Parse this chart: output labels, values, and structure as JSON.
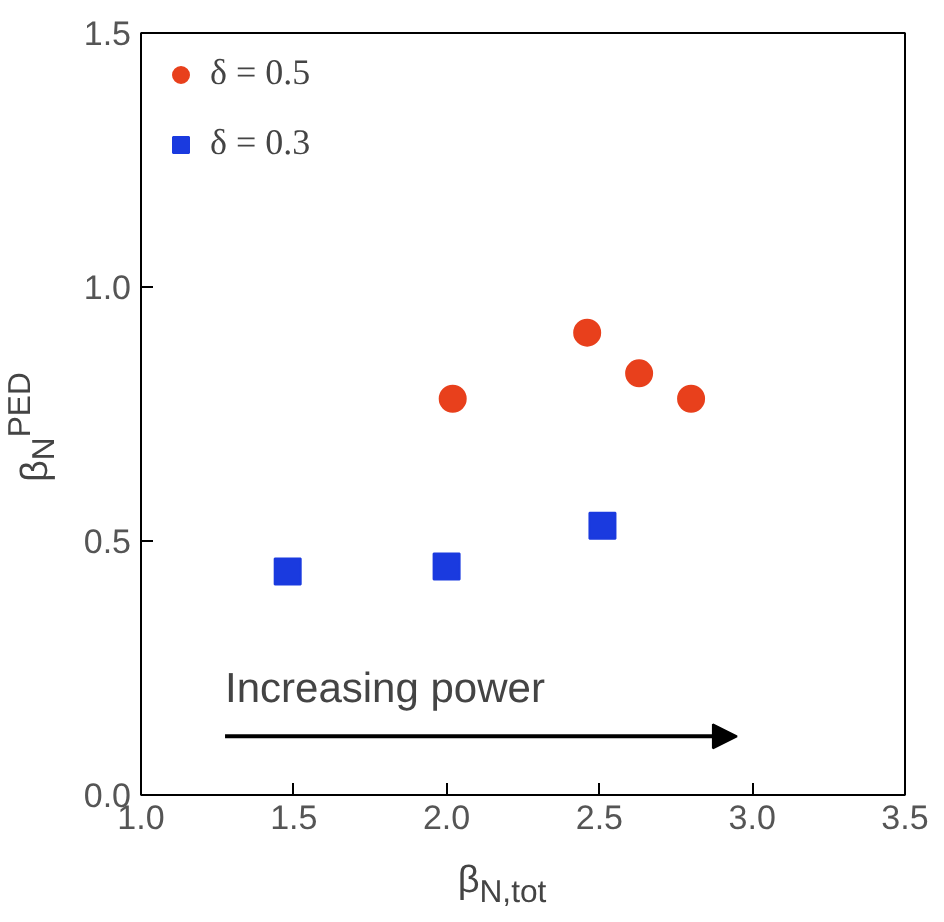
{
  "chart_data": {
    "type": "scatter",
    "xlabel": "β$_{N,tot}$",
    "ylabel": "β$_{N}$$^{PED}$",
    "series": [
      {
        "name": "δ = 0.5",
        "color": "#e8401c",
        "marker": "circle",
        "x": [
          2.02,
          2.46,
          2.63,
          2.8
        ],
        "values": [
          0.78,
          0.91,
          0.83,
          0.78
        ]
      },
      {
        "name": "δ = 0.3",
        "color": "#1a3adf",
        "marker": "square",
        "x": [
          1.48,
          2.0,
          2.51
        ],
        "values": [
          0.44,
          0.45,
          0.53
        ]
      }
    ],
    "xlim": [
      1.0,
      3.5
    ],
    "xticks": [
      {
        "value": 1.0,
        "label": "1.0"
      },
      {
        "value": 1.5,
        "label": "1.5"
      },
      {
        "value": 2.0,
        "label": "2.0"
      },
      {
        "value": 2.5,
        "label": "2.5"
      },
      {
        "value": 3.0,
        "label": "3.0"
      },
      {
        "value": 3.5,
        "label": "3.5"
      }
    ],
    "ylim": [
      0.0,
      1.5
    ],
    "yticks": [
      {
        "value": 0.0,
        "label": "0.0"
      },
      {
        "value": 0.5,
        "label": "0.5"
      },
      {
        "value": 1.0,
        "label": "1.0"
      },
      {
        "value": 1.5,
        "label": "1.5"
      }
    ],
    "annotations": [
      "Increasing power"
    ],
    "grid": false,
    "legend": "top left"
  }
}
